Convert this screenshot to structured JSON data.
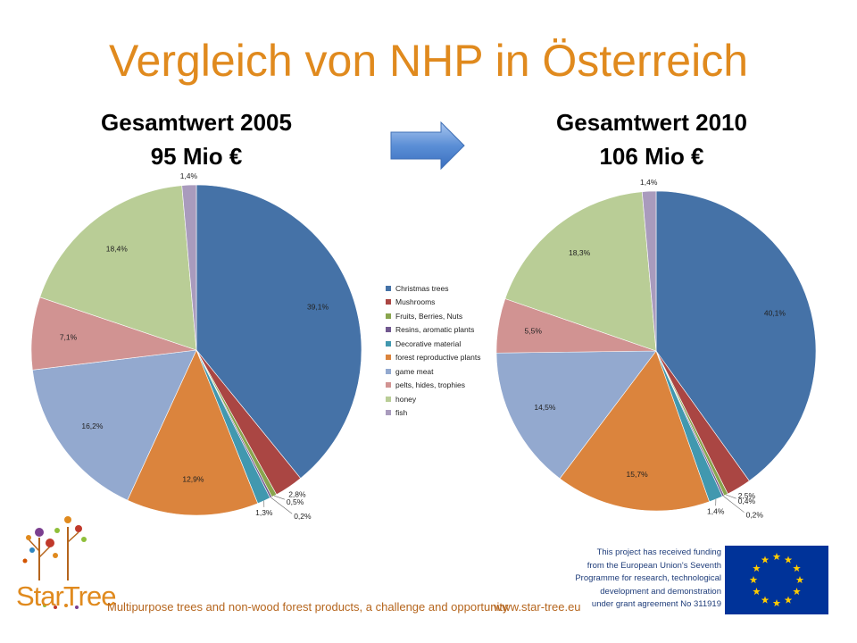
{
  "title": "Vergleich von NHP in Österreich",
  "left_header": {
    "line1": "Gesamtwert 2005",
    "line2": "95 Mio €"
  },
  "right_header": {
    "line1": "Gesamtwert 2010",
    "line2": "106 Mio €"
  },
  "chart_data": [
    {
      "type": "pie",
      "title": "Gesamtwert 2005",
      "subtitle": "95 Mio €",
      "categories": [
        "Christmas trees",
        "Mushrooms",
        "Fruits, Berries, Nuts",
        "Resins, aromatic plants",
        "Decorative material",
        "forest reproductive plants",
        "game meat",
        "pelts, hides, trophies",
        "honey",
        "fish"
      ],
      "values": [
        39.1,
        2.8,
        0.5,
        0.2,
        1.3,
        12.9,
        16.2,
        7.1,
        18.4,
        1.4
      ],
      "labels": [
        "39,1%",
        "2,8%",
        "0,5%",
        "0,2%",
        "1,3%",
        "12,9%",
        "16,2%",
        "7,1%",
        "18,4%",
        "1,4%"
      ]
    },
    {
      "type": "pie",
      "title": "Gesamtwert 2010",
      "subtitle": "106 Mio €",
      "categories": [
        "Christmas trees",
        "Mushrooms",
        "Fruits, Berries, Nuts",
        "Resins, aromatic plants",
        "Decorative material",
        "forest reproductive plants",
        "game meat",
        "pelts, hides, trophies",
        "honey",
        "fish"
      ],
      "values": [
        40.1,
        2.5,
        0.4,
        0.2,
        1.4,
        15.7,
        14.5,
        5.5,
        18.3,
        1.4
      ],
      "labels": [
        "40,1%",
        "2,5%",
        "0,4%",
        "0,2%",
        "1,4%",
        "15,7%",
        "14,5%",
        "5,5%",
        "18,3%",
        "1,4%"
      ]
    }
  ],
  "legend": {
    "items": [
      "Christmas trees",
      "Mushrooms",
      "Fruits, Berries, Nuts",
      "Resins, aromatic plants",
      "Decorative material",
      "forest reproductive plants",
      "game meat",
      "pelts, hides, trophies",
      "honey",
      "fish"
    ],
    "colors": [
      "#4572A7",
      "#AA4643",
      "#89A54E",
      "#71588F",
      "#4198AF",
      "#DB843D",
      "#93A9CF",
      "#D19392",
      "#B9CD96",
      "#A99BBD"
    ]
  },
  "footer": {
    "tagline": "Multipurpose trees and non-wood forest products, a challenge and opportunity",
    "url": "www.star-tree.eu",
    "logo_text": "StarTree",
    "funding_lines": [
      "This project has received funding",
      "from the European Union's Seventh",
      "Programme for research, technological",
      "development and demonstration",
      "under grant agreement No 311919"
    ]
  },
  "colors": {
    "title": "#E08A1E",
    "footer_text": "#b5651d",
    "eu_blue": "#003399",
    "eu_star": "#FFCC00"
  },
  "icons": {
    "arrow": "right-arrow-icon",
    "logo": "startree-logo-icon",
    "flag": "eu-flag-icon"
  }
}
